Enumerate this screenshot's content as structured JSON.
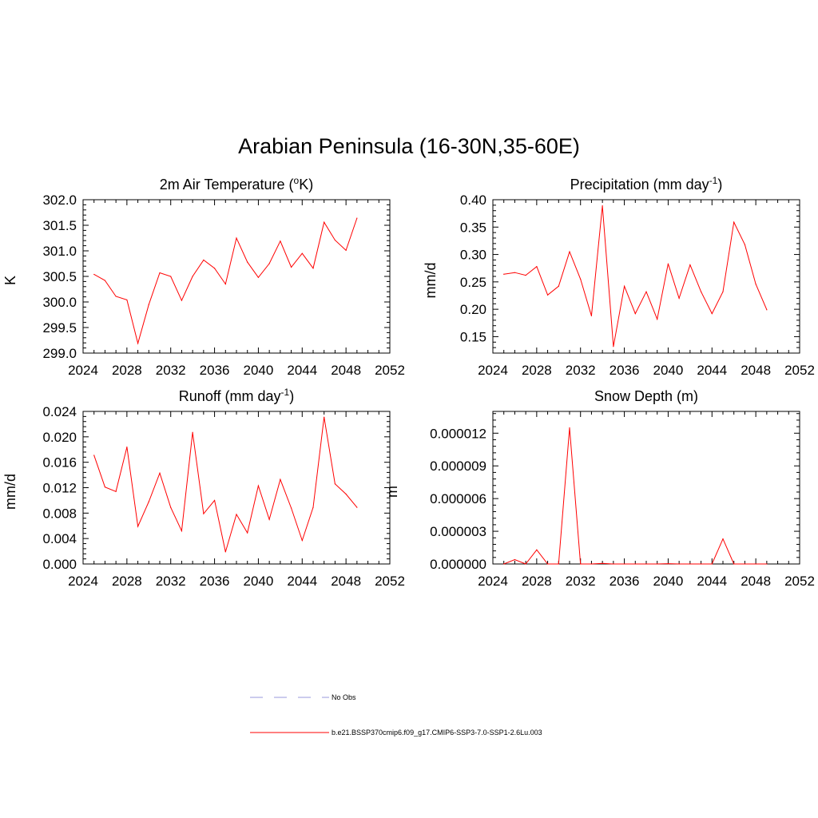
{
  "title": "Arabian Peninsula (16-30N,35-60E)",
  "legend": [
    {
      "label": "No Obs",
      "color": "#9999dd",
      "dash": true
    },
    {
      "label": "b.e21.BSSP370cmip6.f09_g17.CMIP6-SSP3-7.0-SSP1-2.6Lu.003",
      "color": "#ff0000",
      "dash": false
    }
  ],
  "chart_data": [
    {
      "type": "line",
      "title": "2m Air Temperature (",
      "title_sup": "o",
      "title_end": "K)",
      "ylabel": "K",
      "xlim": [
        2024,
        2052
      ],
      "ylim": [
        299.0,
        302.0
      ],
      "xticks": [
        2024,
        2028,
        2032,
        2036,
        2040,
        2044,
        2048,
        2052
      ],
      "yticks": [
        299.0,
        299.5,
        300.0,
        300.5,
        301.0,
        301.5,
        302.0
      ],
      "ytick_labels": [
        "299.0",
        "299.5",
        "300.0",
        "300.5",
        "301.0",
        "301.5",
        "302.0"
      ],
      "color": "#ff0000",
      "x": [
        2025,
        2026,
        2027,
        2028,
        2029,
        2030,
        2031,
        2032,
        2033,
        2034,
        2035,
        2036,
        2037,
        2038,
        2039,
        2040,
        2041,
        2042,
        2043,
        2044,
        2045,
        2046,
        2047,
        2048,
        2049
      ],
      "y": [
        300.54,
        300.42,
        300.11,
        300.04,
        299.19,
        299.95,
        300.57,
        300.5,
        300.03,
        300.5,
        300.82,
        300.66,
        300.35,
        301.25,
        300.78,
        300.48,
        300.75,
        301.19,
        300.68,
        300.95,
        300.66,
        301.56,
        301.21,
        301.01,
        301.64
      ]
    },
    {
      "type": "line",
      "title": "Precipitation (mm day",
      "title_sup": "-1",
      "title_end": ")",
      "ylabel": "mm/d",
      "xlim": [
        2024,
        2052
      ],
      "ylim": [
        0.12,
        0.4
      ],
      "xticks": [
        2024,
        2028,
        2032,
        2036,
        2040,
        2044,
        2048,
        2052
      ],
      "yticks": [
        0.15,
        0.2,
        0.25,
        0.3,
        0.35,
        0.4
      ],
      "ytick_labels": [
        "0.15",
        "0.20",
        "0.25",
        "0.30",
        "0.35",
        "0.40"
      ],
      "color": "#ff0000",
      "x": [
        2025,
        2026,
        2027,
        2028,
        2029,
        2030,
        2031,
        2032,
        2033,
        2034,
        2035,
        2036,
        2037,
        2038,
        2039,
        2040,
        2041,
        2042,
        2043,
        2044,
        2045,
        2046,
        2047,
        2048,
        2049
      ],
      "y": [
        0.264,
        0.267,
        0.262,
        0.278,
        0.226,
        0.242,
        0.305,
        0.255,
        0.188,
        0.389,
        0.132,
        0.242,
        0.192,
        0.232,
        0.182,
        0.283,
        0.22,
        0.281,
        0.232,
        0.192,
        0.232,
        0.359,
        0.318,
        0.246,
        0.199
      ]
    },
    {
      "type": "line",
      "title": "Runoff (mm day",
      "title_sup": "-1",
      "title_end": ")",
      "ylabel": "mm/d",
      "xlim": [
        2024,
        2052
      ],
      "ylim": [
        0.0,
        0.024
      ],
      "xticks": [
        2024,
        2028,
        2032,
        2036,
        2040,
        2044,
        2048,
        2052
      ],
      "yticks": [
        0.0,
        0.004,
        0.008,
        0.012,
        0.016,
        0.02,
        0.024
      ],
      "ytick_labels": [
        "0.000",
        "0.004",
        "0.008",
        "0.012",
        "0.016",
        "0.020",
        "0.024"
      ],
      "color": "#ff0000",
      "x": [
        2025,
        2026,
        2027,
        2028,
        2029,
        2030,
        2031,
        2032,
        2033,
        2034,
        2035,
        2036,
        2037,
        2038,
        2039,
        2040,
        2041,
        2042,
        2043,
        2044,
        2045,
        2046,
        2047,
        2048,
        2049
      ],
      "y": [
        0.0171,
        0.0121,
        0.0114,
        0.0184,
        0.0059,
        0.0098,
        0.0143,
        0.0089,
        0.0052,
        0.0207,
        0.0079,
        0.01,
        0.0019,
        0.0078,
        0.0049,
        0.0123,
        0.007,
        0.0133,
        0.0088,
        0.0037,
        0.0089,
        0.0231,
        0.0126,
        0.011,
        0.0089
      ]
    },
    {
      "type": "line",
      "title": "Snow Depth (m)",
      "title_sup": "",
      "title_end": "",
      "ylabel": "m",
      "xlim": [
        2024,
        2052
      ],
      "ylim": [
        0.0,
        1.4e-05
      ],
      "xticks": [
        2024,
        2028,
        2032,
        2036,
        2040,
        2044,
        2048,
        2052
      ],
      "yticks": [
        0.0,
        3e-06,
        6e-06,
        9e-06,
        1.2e-05
      ],
      "ytick_labels": [
        "0.000000",
        "0.000003",
        "0.000006",
        "0.000009",
        "0.000012"
      ],
      "color": "#ff0000",
      "x": [
        2025,
        2026,
        2027,
        2028,
        2029,
        2030,
        2031,
        2032,
        2033,
        2034,
        2035,
        2036,
        2037,
        2038,
        2039,
        2040,
        2041,
        2042,
        2043,
        2044,
        2045,
        2046,
        2047,
        2048,
        2049
      ],
      "y": [
        0.0,
        4e-07,
        0.0,
        1.3e-06,
        0.0,
        0.0,
        1.25e-05,
        0.0,
        0.0,
        5e-08,
        0.0,
        0.0,
        0.0,
        0.0,
        0.0,
        3e-08,
        0.0,
        0.0,
        0.0,
        0.0,
        2.3e-06,
        0.0,
        0.0,
        0.0,
        0.0
      ]
    }
  ]
}
